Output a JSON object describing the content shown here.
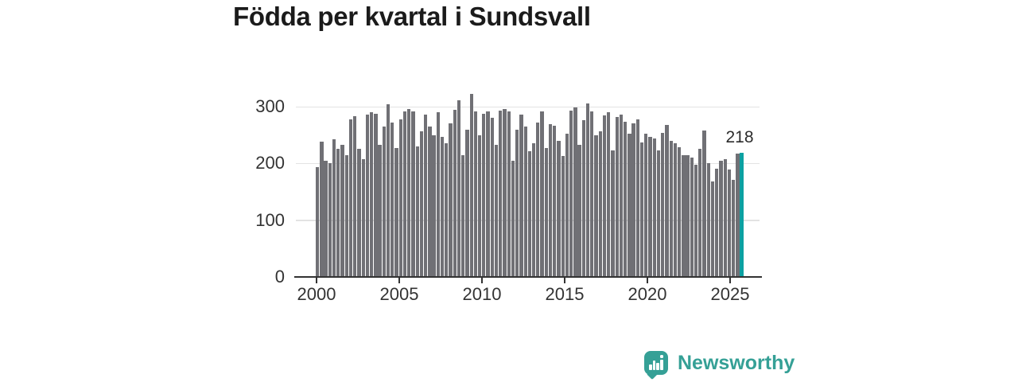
{
  "title": "Födda per kvartal i Sundsvall",
  "chart_data": {
    "type": "bar",
    "title": "Födda per kvartal i Sundsvall",
    "xlabel": "",
    "ylabel": "",
    "x_unit": "quarter",
    "x_start": "2000 Q1",
    "x_end": "2025 Q3",
    "x_tick_labels": [
      "2000",
      "2005",
      "2010",
      "2015",
      "2020",
      "2025"
    ],
    "y_tick_labels": [
      "300",
      "200",
      "100",
      "0"
    ],
    "ylim": [
      0,
      340
    ],
    "grid": true,
    "values": [
      194,
      238,
      205,
      201,
      243,
      226,
      233,
      215,
      277,
      283,
      225,
      207,
      286,
      290,
      287,
      233,
      265,
      304,
      272,
      227,
      277,
      292,
      296,
      292,
      230,
      257,
      286,
      265,
      250,
      290,
      247,
      236,
      271,
      294,
      311,
      215,
      259,
      322,
      292,
      249,
      288,
      292,
      280,
      233,
      293,
      296,
      292,
      205,
      260,
      286,
      265,
      222,
      235,
      272,
      291,
      227,
      269,
      266,
      240,
      213,
      253,
      293,
      299,
      232,
      276,
      306,
      292,
      249,
      257,
      285,
      290,
      223,
      282,
      286,
      273,
      252,
      271,
      278,
      237,
      253,
      246,
      244,
      223,
      254,
      268,
      240,
      235,
      228,
      215,
      215,
      210,
      198,
      226,
      258,
      201,
      168,
      191,
      205,
      207,
      189,
      171,
      217,
      218
    ],
    "highlight_index": 102,
    "highlight_value": 218,
    "highlight_annotation": "218"
  },
  "colors": {
    "bar": "#707075",
    "highlight": "#0ca1a2",
    "axis": "#333333",
    "grid": "#e3e3e3",
    "title": "#1b1b1b",
    "brand": "#35a096"
  },
  "branding": {
    "name": "Newsworthy",
    "icon": "bar-chart-speech-bubble-icon"
  }
}
